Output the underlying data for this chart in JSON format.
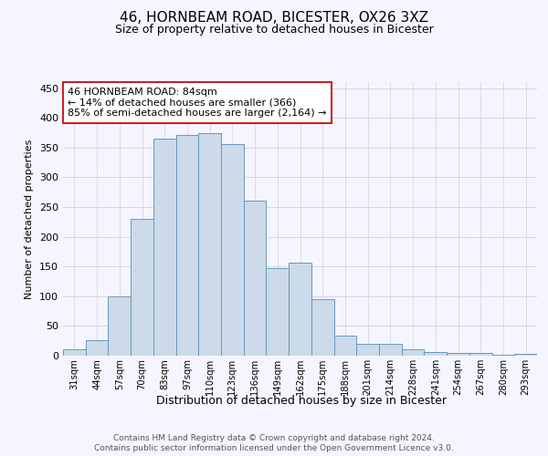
{
  "title_line1": "46, HORNBEAM ROAD, BICESTER, OX26 3XZ",
  "title_line2": "Size of property relative to detached houses in Bicester",
  "xlabel": "Distribution of detached houses by size in Bicester",
  "ylabel": "Number of detached properties",
  "categories": [
    "31sqm",
    "44sqm",
    "57sqm",
    "70sqm",
    "83sqm",
    "97sqm",
    "110sqm",
    "123sqm",
    "136sqm",
    "149sqm",
    "162sqm",
    "175sqm",
    "188sqm",
    "201sqm",
    "214sqm",
    "228sqm",
    "241sqm",
    "254sqm",
    "267sqm",
    "280sqm",
    "293sqm"
  ],
  "values": [
    10,
    26,
    100,
    230,
    365,
    371,
    374,
    356,
    260,
    147,
    156,
    95,
    33,
    20,
    20,
    10,
    6,
    4,
    4,
    1,
    3
  ],
  "bar_color": "#ccdaea",
  "bar_edge_color": "#6699bb",
  "annotation_text_line1": "46 HORNBEAM ROAD: 84sqm",
  "annotation_text_line2": "← 14% of detached houses are smaller (366)",
  "annotation_text_line3": "85% of semi-detached houses are larger (2,164) →",
  "annotation_box_facecolor": "#ffffff",
  "annotation_box_edgecolor": "#cc2222",
  "footer_line1": "Contains HM Land Registry data © Crown copyright and database right 2024.",
  "footer_line2": "Contains public sector information licensed under the Open Government Licence v3.0.",
  "ylim": [
    0,
    460
  ],
  "yticks": [
    0,
    50,
    100,
    150,
    200,
    250,
    300,
    350,
    400,
    450
  ],
  "background_color": "#f5f5ff",
  "grid_color": "#d0d0e0"
}
